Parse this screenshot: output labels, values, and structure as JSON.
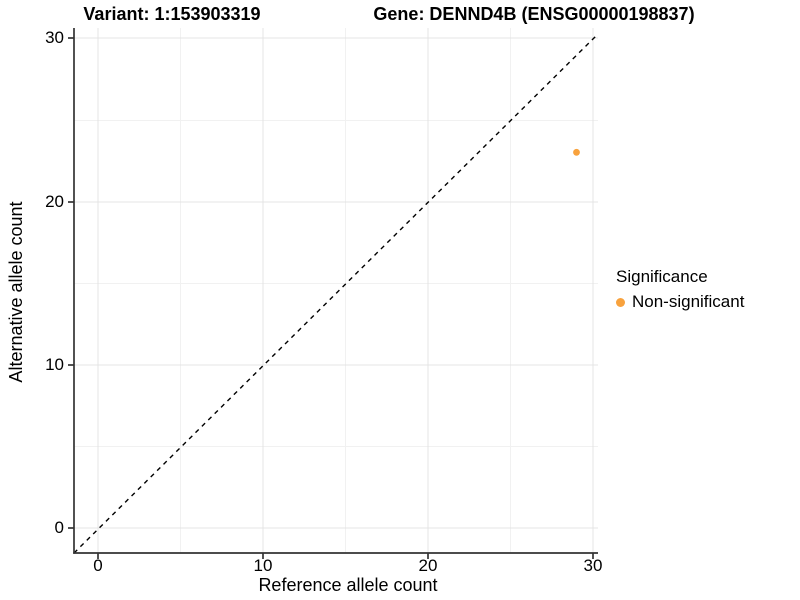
{
  "title": {
    "variant": "Variant: 1:153903319",
    "gene": "Gene: DENND4B (ENSG00000198837)"
  },
  "axes": {
    "x": {
      "label": "Reference allele count",
      "ticks": [
        "0",
        "10",
        "20",
        "30"
      ]
    },
    "y": {
      "label": "Alternative allele count",
      "ticks": [
        "30",
        "20",
        "10",
        "0"
      ]
    }
  },
  "legend": {
    "title": "Significance",
    "items": [
      {
        "label": "Non-significant",
        "color": "#F8A23D"
      }
    ]
  },
  "colors": {
    "point": "#F8A23D",
    "axis_line": "#333333",
    "grid_major": "#e4e4e4",
    "grid_minor": "#f1f1f1",
    "identity_line": "#000000",
    "background": "#ffffff"
  },
  "chart_data": {
    "type": "scatter",
    "title": "Variant: 1:153903319 — Gene: DENND4B (ENSG00000198837)",
    "xlabel": "Reference allele count",
    "ylabel": "Alternative allele count",
    "xlim": [
      0,
      30
    ],
    "ylim": [
      0,
      30
    ],
    "x_ticks": [
      0,
      10,
      20,
      30
    ],
    "y_ticks": [
      0,
      10,
      20,
      30
    ],
    "grid": "major and minor gridlines, white background",
    "legend_position": "right",
    "reference_line": {
      "style": "dashed",
      "color": "black",
      "equation": "y = x"
    },
    "series": [
      {
        "name": "Non-significant",
        "color": "#F8A23D",
        "points": [
          {
            "x": 29,
            "y": 23
          }
        ]
      }
    ]
  }
}
